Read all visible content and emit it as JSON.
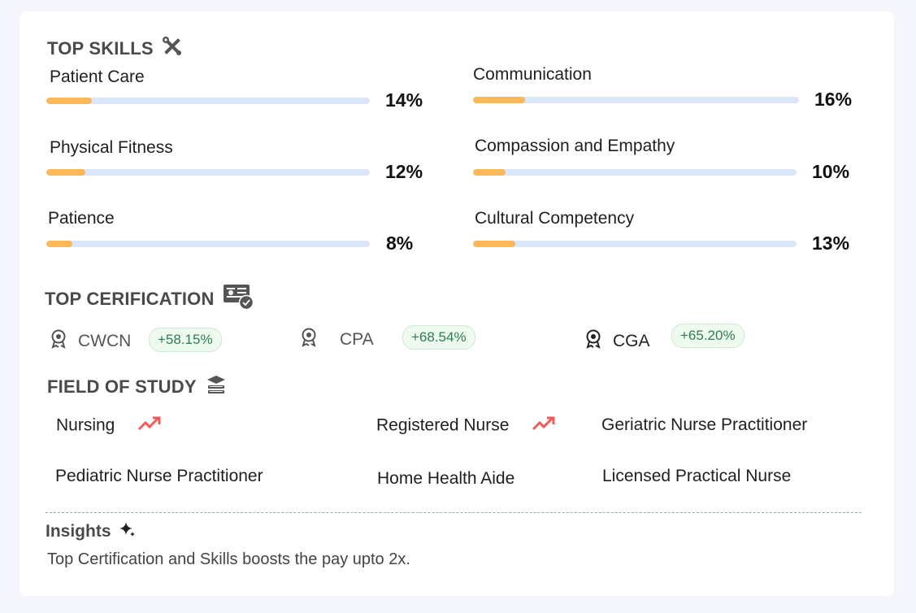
{
  "top_skills": {
    "title": "TOP SKILLS",
    "icon": "tools-icon",
    "items": [
      {
        "label": "Patient Care",
        "percent_text": "14%",
        "percent": 14
      },
      {
        "label": "Communication",
        "percent_text": "16%",
        "percent": 16
      },
      {
        "label": "Physical Fitness",
        "percent_text": "12%",
        "percent": 12
      },
      {
        "label": "Compassion and Empathy",
        "percent_text": "10%",
        "percent": 10
      },
      {
        "label": "Patience",
        "percent_text": "8%",
        "percent": 8
      },
      {
        "label": "Cultural Competency",
        "percent_text": "13%",
        "percent": 13
      }
    ],
    "bar_color": "#fbb859",
    "track_color": "#dbe6fa"
  },
  "top_certification": {
    "title": "TOP CERIFICATION",
    "icon": "certificate-icon",
    "items": [
      {
        "name": "CWCN",
        "change": "+58.15%"
      },
      {
        "name": "CPA",
        "change": "+68.54%"
      },
      {
        "name": "CGA",
        "change": "+65.20%"
      }
    ]
  },
  "field_of_study": {
    "title": "FIELD OF STUDY",
    "icon": "books-icon",
    "items": [
      {
        "label": "Nursing",
        "trending": true
      },
      {
        "label": "Registered Nurse",
        "trending": true
      },
      {
        "label": "Geriatric Nurse Practitioner",
        "trending": false
      },
      {
        "label": "Pediatric Nurse Practitioner",
        "trending": false
      },
      {
        "label": "Home Health Aide",
        "trending": false
      },
      {
        "label": "Licensed Practical Nurse",
        "trending": false
      }
    ],
    "trend_color": "#f25a5a"
  },
  "insights": {
    "title": "Insights",
    "icon": "sparkle-icon",
    "text": "Top Certification and Skills boosts the pay upto 2x."
  }
}
